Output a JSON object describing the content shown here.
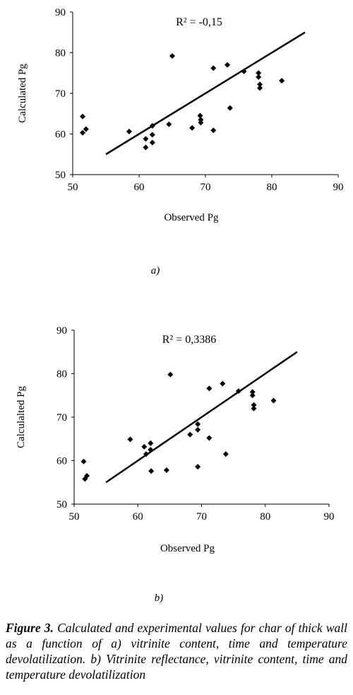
{
  "charts": [
    {
      "panel_label": "a)",
      "annotation": "R² = -0,15"
    },
    {
      "panel_label": "b)",
      "annotation": "R² = 0,3386"
    }
  ],
  "caption": {
    "label": "Figure 3.",
    "text": " Calculated and experimental values for char of thick wall as a function of  a) vitrinite content, time and temperature devolatilization. b) Vitrinite reflectance, vitrinite content, time and temperature devolatilization"
  },
  "chart_data": [
    {
      "type": "scatter",
      "title": "",
      "xlabel": "Observed Pg",
      "ylabel": "Calculated Pg",
      "xlim": [
        50,
        90
      ],
      "ylim": [
        50,
        90
      ],
      "xticks": [
        50,
        60,
        70,
        80,
        90
      ],
      "yticks": [
        50,
        60,
        70,
        80,
        90
      ],
      "grid": false,
      "annotation": "R² = -0,15",
      "reference_line": {
        "x": [
          55,
          85
        ],
        "y": [
          55,
          85
        ]
      },
      "series": [
        {
          "points": [
            [
              51.5,
              64.3
            ],
            [
              51.5,
              60.3
            ],
            [
              52.0,
              61.2
            ],
            [
              58.5,
              60.6
            ],
            [
              61.0,
              58.8
            ],
            [
              61.0,
              56.7
            ],
            [
              62.0,
              62.0
            ],
            [
              62.0,
              59.8
            ],
            [
              62.0,
              57.9
            ],
            [
              64.5,
              62.4
            ],
            [
              65.0,
              79.2
            ],
            [
              68.0,
              61.5
            ],
            [
              69.2,
              64.5
            ],
            [
              69.3,
              63.5
            ],
            [
              69.3,
              62.8
            ],
            [
              71.2,
              76.2
            ],
            [
              71.2,
              60.9
            ],
            [
              73.3,
              77.0
            ],
            [
              73.7,
              66.4
            ],
            [
              75.8,
              75.4
            ],
            [
              78.0,
              75.0
            ],
            [
              78.0,
              74.0
            ],
            [
              78.2,
              72.2
            ],
            [
              78.2,
              71.3
            ],
            [
              81.5,
              73.1
            ]
          ]
        }
      ]
    },
    {
      "type": "scatter",
      "title": "",
      "xlabel": "Observed Pg",
      "ylabel": "Calculalted Pg",
      "xlim": [
        50,
        90
      ],
      "ylim": [
        50,
        90
      ],
      "xticks": [
        50,
        60,
        70,
        80,
        90
      ],
      "yticks": [
        50,
        60,
        70,
        80,
        90
      ],
      "grid": false,
      "annotation": "R² = 0,3386",
      "reference_line": {
        "x": [
          55,
          85
        ],
        "y": [
          55,
          85
        ]
      },
      "series": [
        {
          "points": [
            [
              51.5,
              59.8
            ],
            [
              51.7,
              55.8
            ],
            [
              52.0,
              56.5
            ],
            [
              58.8,
              64.9
            ],
            [
              61.0,
              63.2
            ],
            [
              61.3,
              61.5
            ],
            [
              62.0,
              64.0
            ],
            [
              62.0,
              62.5
            ],
            [
              62.1,
              57.6
            ],
            [
              64.5,
              57.8
            ],
            [
              65.1,
              79.8
            ],
            [
              68.2,
              66.0
            ],
            [
              69.4,
              68.4
            ],
            [
              69.4,
              67.1
            ],
            [
              69.4,
              58.6
            ],
            [
              71.2,
              76.6
            ],
            [
              71.2,
              65.2
            ],
            [
              73.3,
              77.7
            ],
            [
              73.8,
              61.5
            ],
            [
              75.8,
              76.0
            ],
            [
              78.0,
              75.8
            ],
            [
              78.0,
              75.0
            ],
            [
              78.2,
              72.8
            ],
            [
              78.2,
              72.0
            ],
            [
              81.3,
              73.8
            ]
          ]
        }
      ]
    }
  ]
}
